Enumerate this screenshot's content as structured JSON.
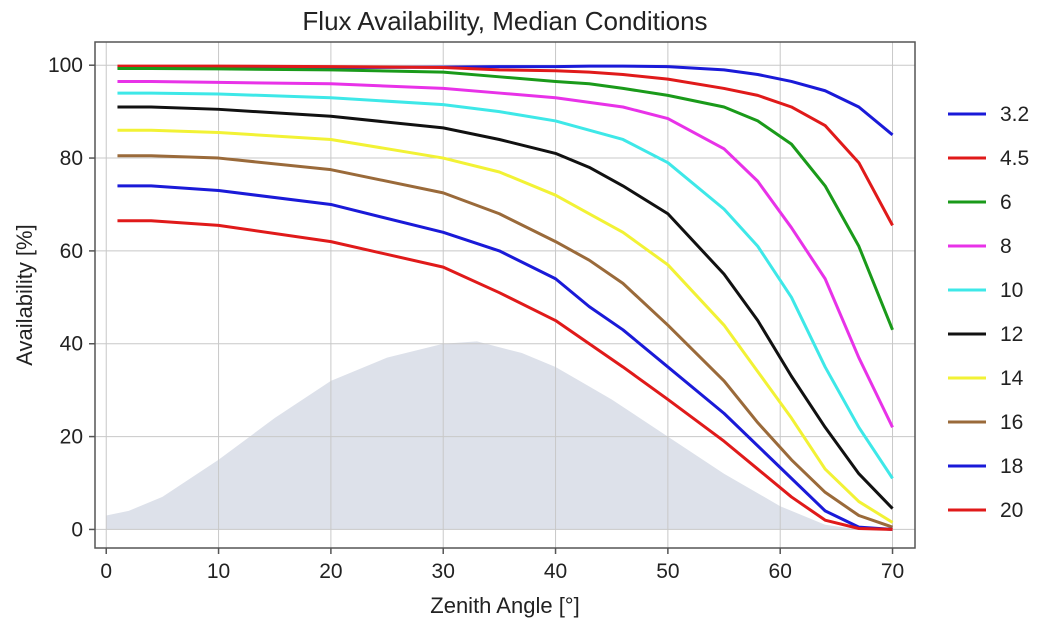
{
  "chart_data": {
    "type": "line",
    "title": "Flux Availability, Median Conditions",
    "xlabel": "Zenith Angle  [°]",
    "ylabel": "Availability    [%]",
    "xlim": [
      -1,
      72
    ],
    "ylim": [
      -4,
      105
    ],
    "xticks": [
      0,
      10,
      20,
      30,
      40,
      50,
      60,
      70
    ],
    "yticks": [
      0,
      20,
      40,
      60,
      80,
      100
    ],
    "grid": true,
    "legend_position": "right",
    "background_area": {
      "color": "#dde1ea",
      "x": [
        0,
        2,
        5,
        10,
        15,
        20,
        25,
        30,
        33,
        37,
        40,
        45,
        50,
        55,
        60,
        64,
        67
      ],
      "y": [
        3,
        4,
        7,
        15,
        24,
        32,
        37,
        40,
        40.5,
        38,
        35,
        28,
        20,
        12,
        5,
        1,
        0
      ]
    },
    "x": [
      1,
      4,
      10,
      20,
      30,
      35,
      40,
      43,
      46,
      50,
      55,
      58,
      61,
      64,
      67,
      70
    ],
    "series": [
      {
        "name": "3.2",
        "color": "#1a1ad8",
        "values": [
          99.5,
          99.5,
          99.5,
          99.5,
          99.6,
          99.7,
          99.7,
          99.8,
          99.8,
          99.7,
          99.0,
          98.0,
          96.5,
          94.5,
          91.0,
          85.0
        ]
      },
      {
        "name": "4.5",
        "color": "#e01a1a",
        "values": [
          99.8,
          99.8,
          99.8,
          99.7,
          99.5,
          99.0,
          98.8,
          98.5,
          98.0,
          97.0,
          95.0,
          93.5,
          91.0,
          87.0,
          79.0,
          65.5
        ]
      },
      {
        "name": "6",
        "color": "#1a9a1a",
        "values": [
          99.3,
          99.3,
          99.2,
          99.0,
          98.5,
          97.5,
          96.5,
          96.0,
          95.0,
          93.5,
          91.0,
          88.0,
          83.0,
          74.0,
          61.0,
          43.0
        ]
      },
      {
        "name": "8",
        "color": "#e832e8",
        "values": [
          96.5,
          96.5,
          96.3,
          96.0,
          95.0,
          94.0,
          93.0,
          92.0,
          91.0,
          88.5,
          82.0,
          75.0,
          65.0,
          54.0,
          37.0,
          22.0
        ]
      },
      {
        "name": "10",
        "color": "#3ee8e8",
        "values": [
          94.0,
          94.0,
          93.8,
          93.0,
          91.5,
          90.0,
          88.0,
          86.0,
          84.0,
          79.0,
          69.0,
          61.0,
          50.0,
          35.0,
          22.0,
          11.0
        ]
      },
      {
        "name": "12",
        "color": "#111111",
        "values": [
          91.0,
          91.0,
          90.5,
          89.0,
          86.5,
          84.0,
          81.0,
          78.0,
          74.0,
          68.0,
          55.0,
          45.0,
          33.0,
          22.0,
          12.0,
          4.5
        ]
      },
      {
        "name": "14",
        "color": "#f2f235",
        "values": [
          86.0,
          86.0,
          85.5,
          84.0,
          80.0,
          77.0,
          72.0,
          68.0,
          64.0,
          57.0,
          44.0,
          34.0,
          24.0,
          13.0,
          6.0,
          1.5
        ]
      },
      {
        "name": "16",
        "color": "#9a6a3a",
        "values": [
          80.5,
          80.5,
          80.0,
          77.5,
          72.5,
          68.0,
          62.0,
          58.0,
          53.0,
          44.0,
          32.0,
          23.0,
          15.0,
          8.0,
          3.0,
          0.5
        ]
      },
      {
        "name": "18",
        "color": "#1a1ad8",
        "values": [
          74.0,
          74.0,
          73.0,
          70.0,
          64.0,
          60.0,
          54.0,
          48.0,
          43.0,
          35.0,
          25.0,
          18.0,
          11.0,
          4.0,
          0.5,
          0.0
        ]
      },
      {
        "name": "20",
        "color": "#e01a1a",
        "values": [
          66.5,
          66.5,
          65.5,
          62.0,
          56.5,
          51.0,
          45.0,
          40.0,
          35.0,
          28.0,
          19.0,
          13.0,
          7.0,
          2.0,
          0.2,
          0.0
        ]
      }
    ]
  }
}
